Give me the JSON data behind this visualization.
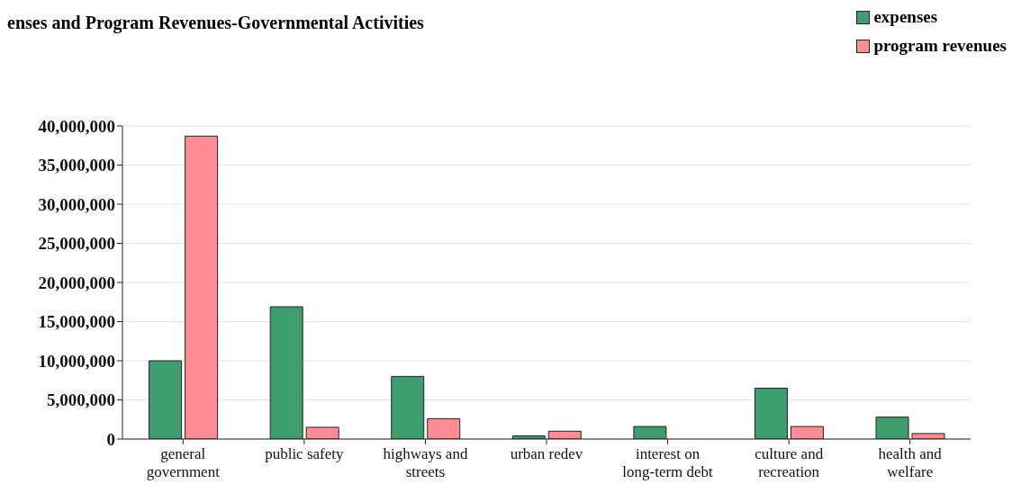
{
  "chart_data": {
    "type": "bar",
    "title": "enses and Program Revenues-Governmental Activities",
    "categories": [
      "general government",
      "public safety",
      "highways and streets",
      "urban redev",
      "interest on long-term debt",
      "culture and recreation",
      "health and welfare"
    ],
    "series": [
      {
        "name": "expenses",
        "color": "#3f9e6e",
        "values": [
          10000000,
          16900000,
          8000000,
          400000,
          1600000,
          6500000,
          2800000
        ]
      },
      {
        "name": "program revenues",
        "color": "#ff8c94",
        "values": [
          38700000,
          1500000,
          2600000,
          1000000,
          0,
          1600000,
          700000
        ]
      }
    ],
    "ylim": [
      0,
      40000000
    ],
    "yticks": [
      0,
      {
        "value": 5000000,
        "label": "5,000,000"
      },
      {
        "value": 10000000,
        "label": "10,000,000"
      },
      {
        "value": 15000000,
        "label": "15,000,000"
      },
      {
        "value": 20000000,
        "label": "20,000,000"
      },
      {
        "value": 25000000,
        "label": "25,000,000"
      },
      {
        "value": 30000000,
        "label": "30,000,000"
      },
      {
        "value": 35000000,
        "label": "35,000,000"
      },
      {
        "value": 40000000,
        "label": "40,000,000"
      }
    ],
    "grid": "y",
    "legend": "top right"
  }
}
